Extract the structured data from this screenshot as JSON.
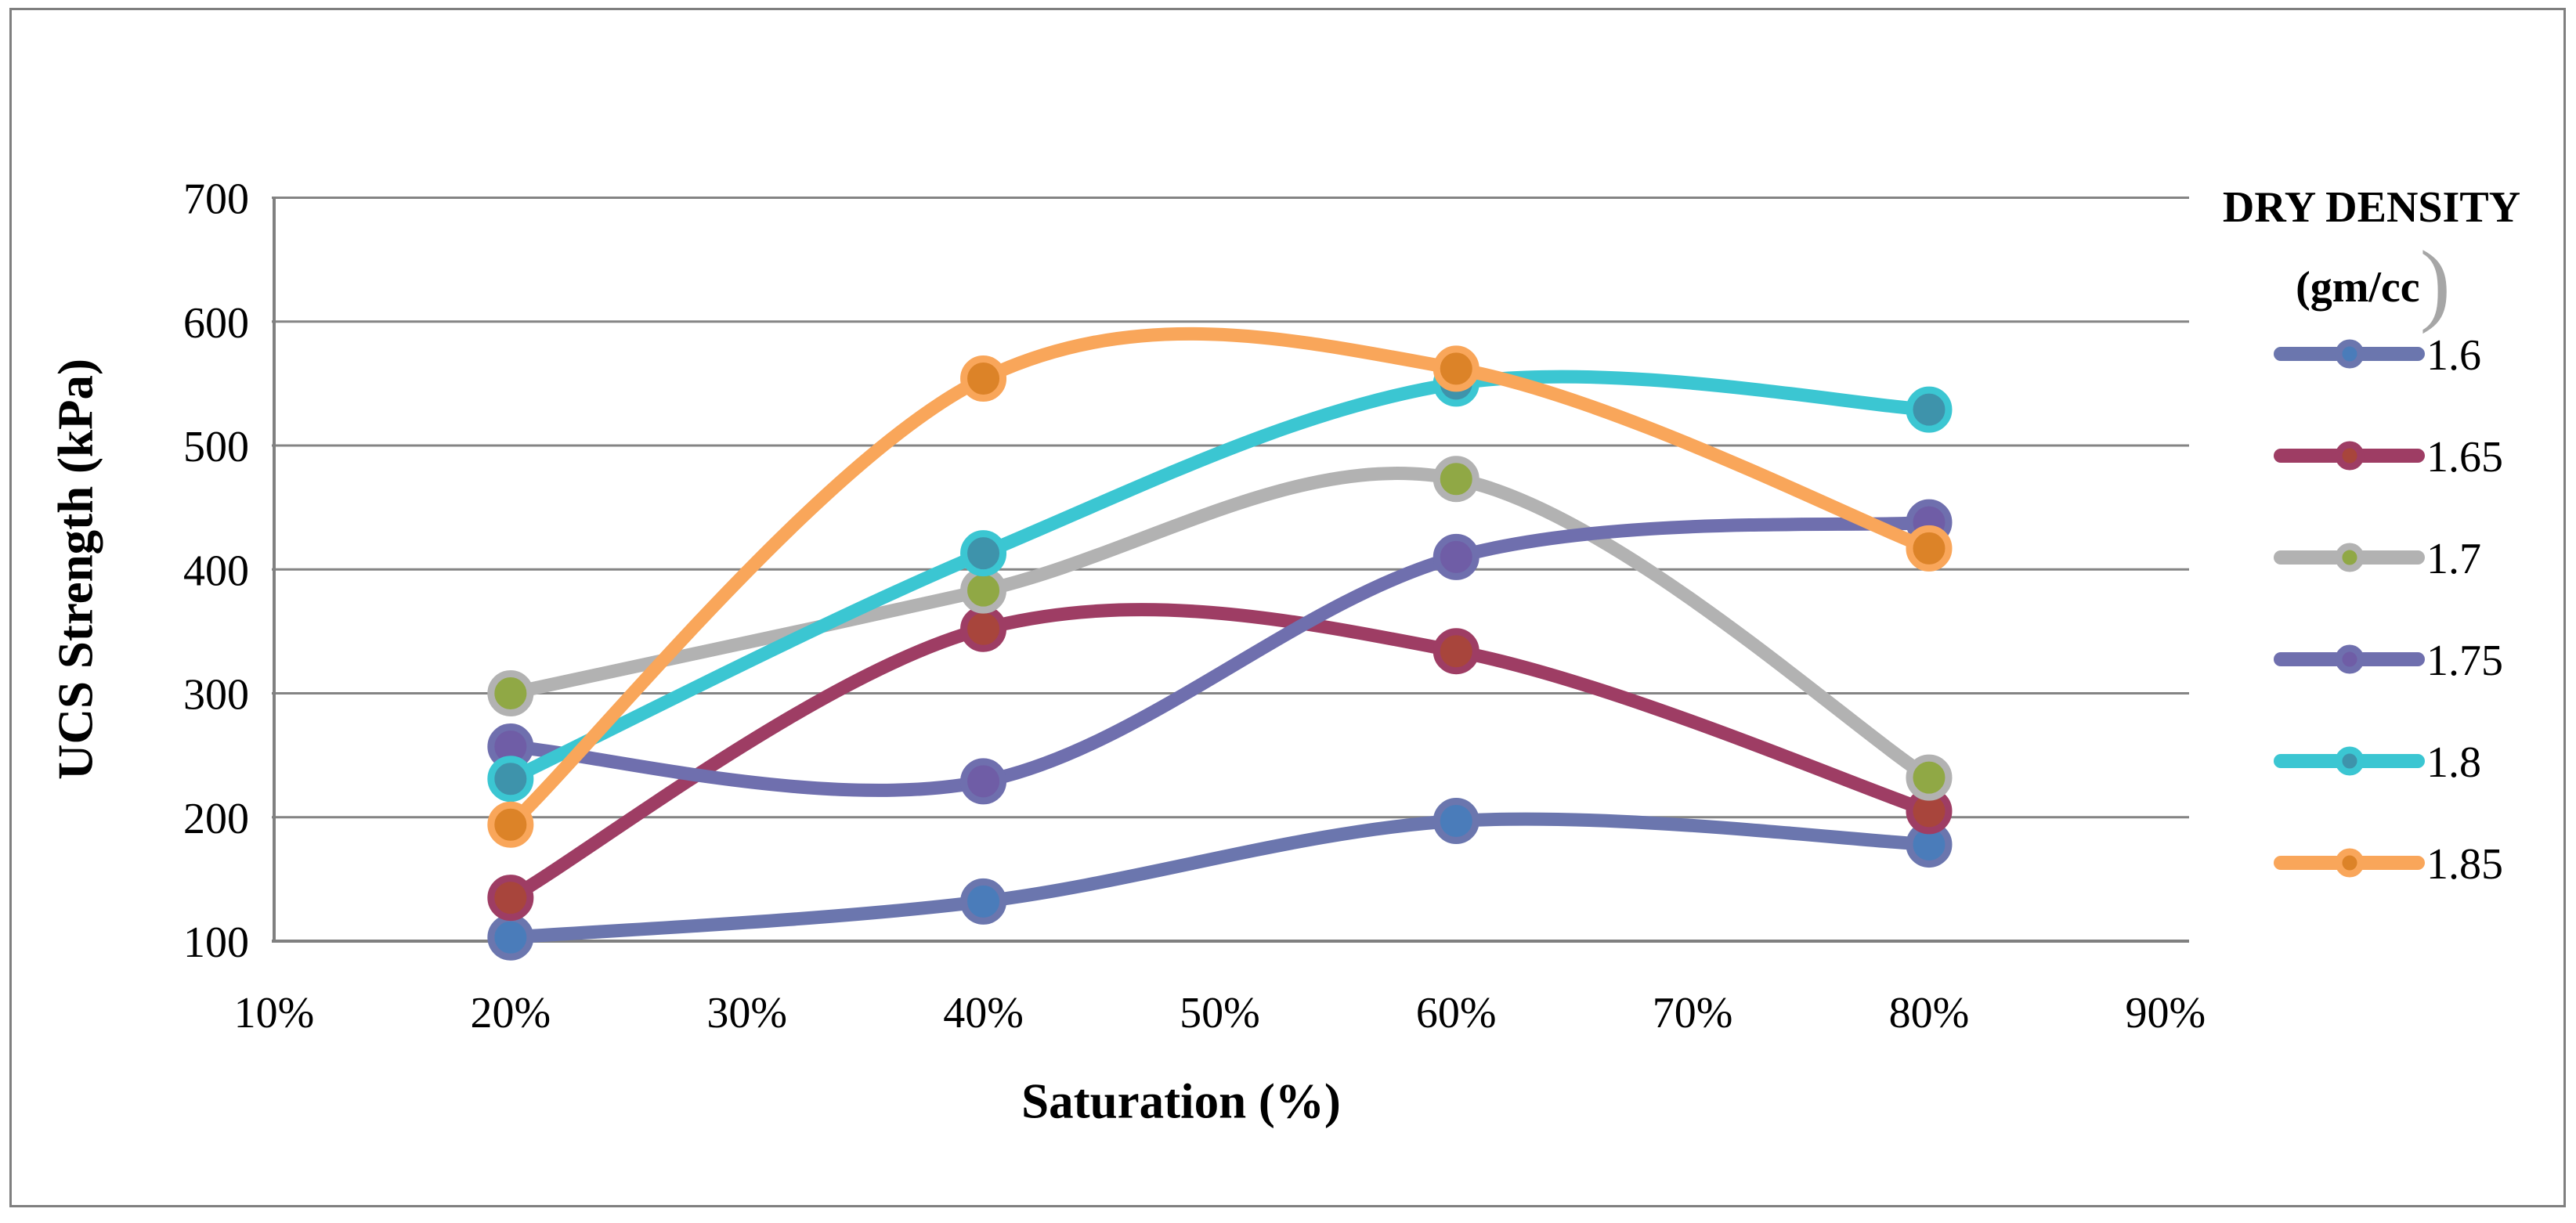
{
  "figure": {
    "background_color": "#ffffff",
    "border_color": "#7f7f7f"
  },
  "axes": {
    "axis_color": "#808080",
    "gridline_color": "#848484",
    "text_color": "#000000"
  },
  "legend": {
    "title_line1": "DRY DENSITY",
    "title_line2_text": "(gm/cc",
    "title_line2_paren": ")",
    "position": "right"
  },
  "chart_data": {
    "type": "line",
    "title": "",
    "xlabel": "Saturation (%)",
    "ylabel": "UCS Strength (kPa)",
    "x": [
      20,
      40,
      60,
      80
    ],
    "x_tick_labels": [
      "10%",
      "20%",
      "30%",
      "40%",
      "50%",
      "60%",
      "70%",
      "80%",
      "90%"
    ],
    "x_tick_values": [
      10,
      20,
      30,
      40,
      50,
      60,
      70,
      80,
      90
    ],
    "y_tick_values": [
      100,
      200,
      300,
      400,
      500,
      600,
      700
    ],
    "xlim": [
      10,
      91
    ],
    "ylim": [
      100,
      700
    ],
    "grid": "horizontal",
    "line_smoothing": true,
    "legend_title": "DRY DENSITY (gm/cc)",
    "series": [
      {
        "name": "1.6",
        "line_color": "#6b76ae",
        "marker_color": "#4a7cba",
        "values": [
          103,
          132,
          197,
          178
        ]
      },
      {
        "name": "1.65",
        "line_color": "#9e3d64",
        "marker_color": "#a8453c",
        "values": [
          135,
          352,
          334,
          205
        ]
      },
      {
        "name": "1.7",
        "line_color": "#b2b2b2",
        "marker_color": "#90a845",
        "values": [
          300,
          383,
          473,
          232
        ]
      },
      {
        "name": "1.75",
        "line_color": "#6f6fae",
        "marker_color": "#6f5da6",
        "values": [
          257,
          229,
          410,
          438
        ]
      },
      {
        "name": "1.8",
        "line_color": "#3bc6d2",
        "marker_color": "#3e93ab",
        "values": [
          231,
          413,
          550,
          529
        ]
      },
      {
        "name": "1.85",
        "line_color": "#f9a65a",
        "marker_color": "#dc8328",
        "values": [
          194,
          554,
          562,
          417
        ]
      }
    ]
  }
}
